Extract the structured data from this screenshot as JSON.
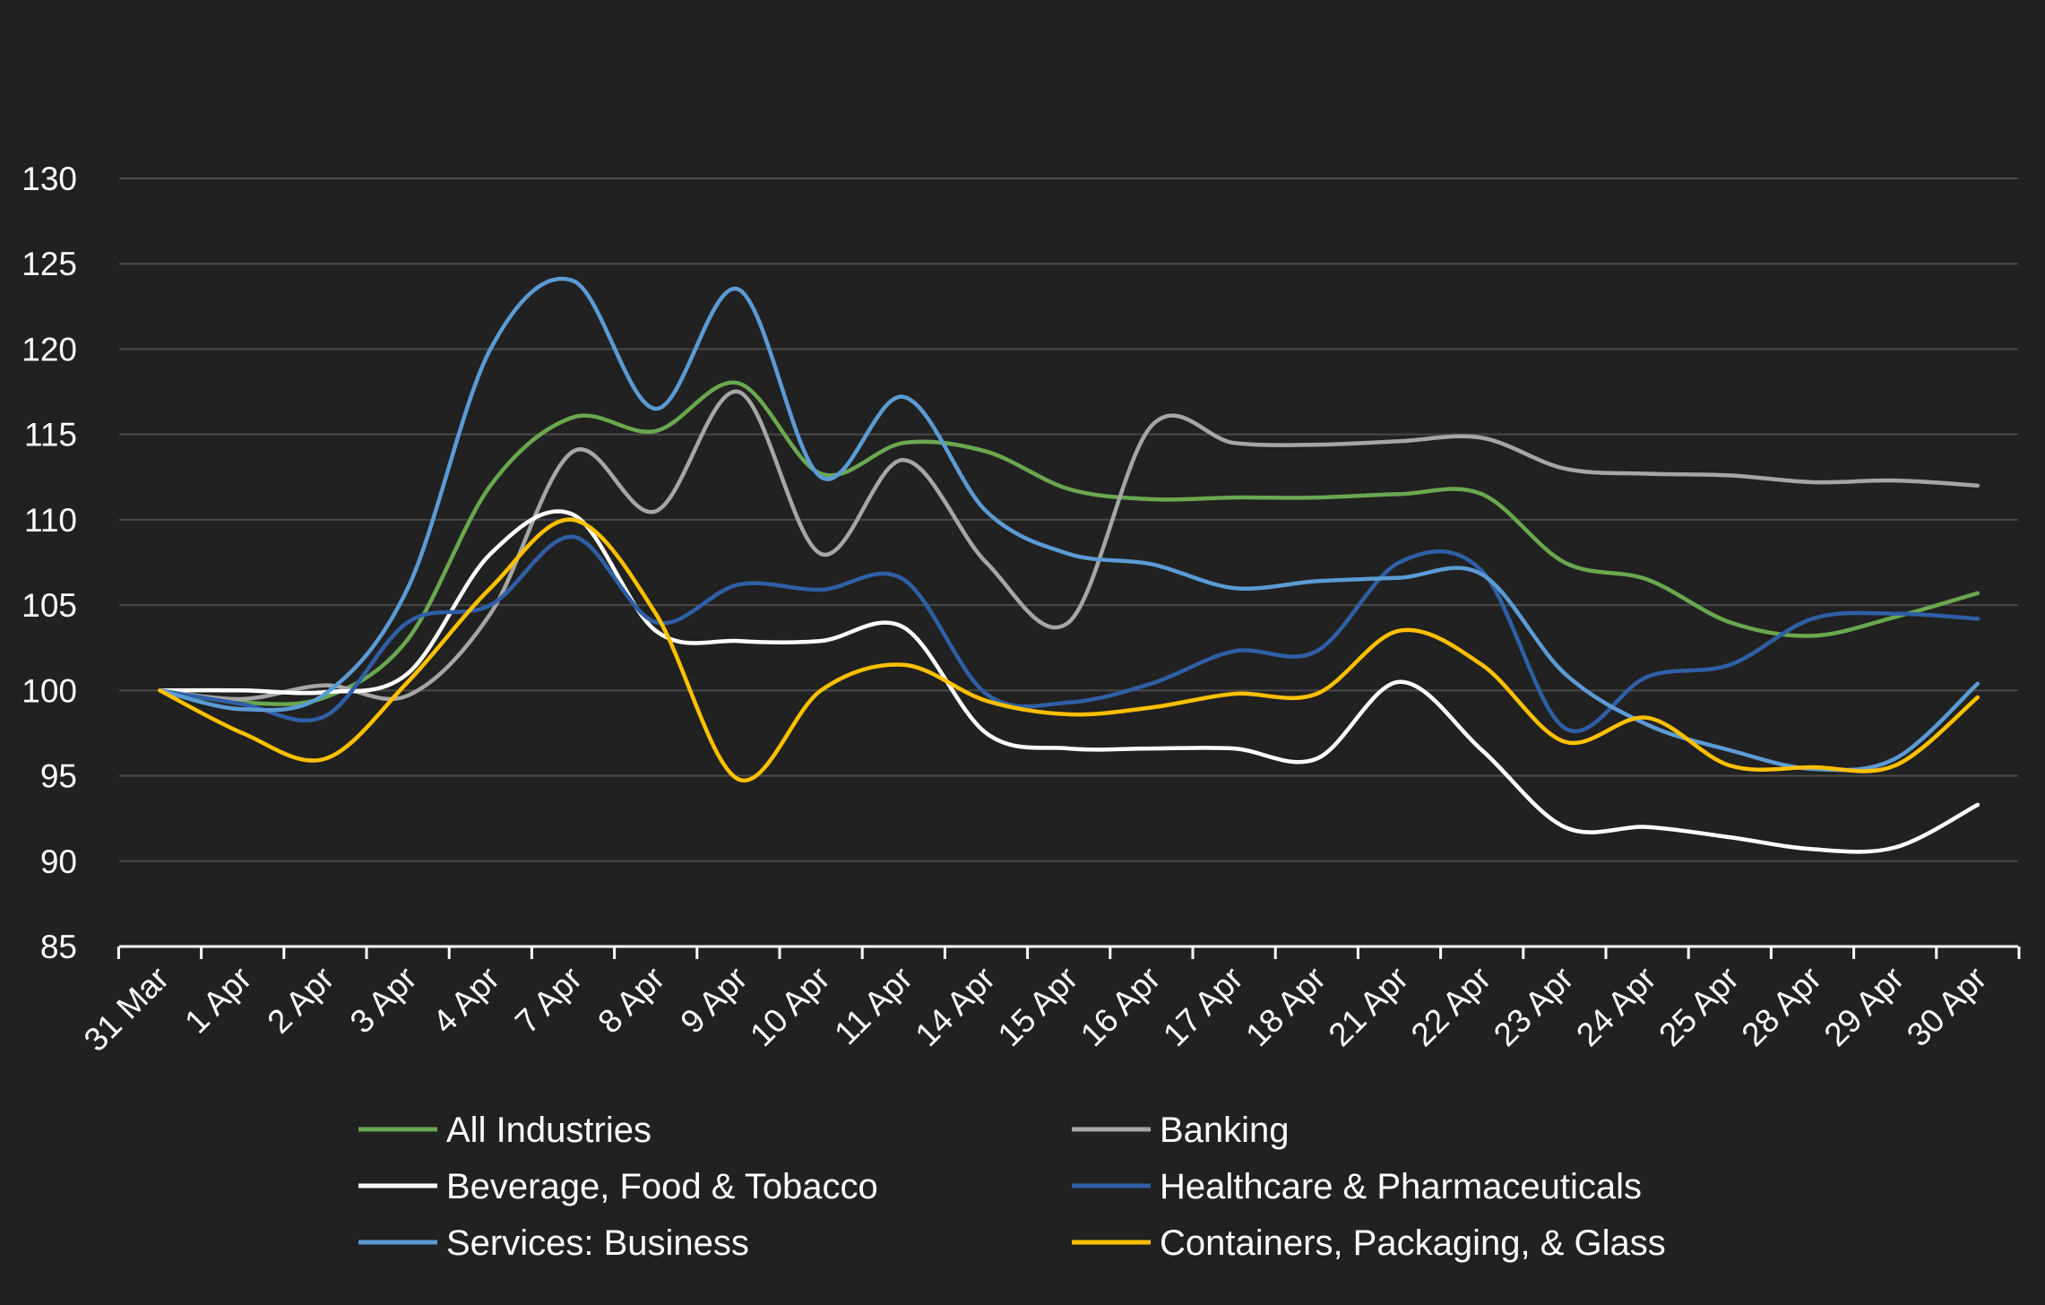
{
  "chart_data": {
    "type": "line",
    "title": "",
    "xlabel": "",
    "ylabel": "",
    "ylim": [
      85,
      130
    ],
    "yticks": [
      "85",
      "90",
      "95",
      "100",
      "105",
      "110",
      "115",
      "120",
      "125",
      "130"
    ],
    "grid": true,
    "legend_position": "bottom",
    "categories": [
      "31 Mar",
      "1 Apr",
      "2 Apr",
      "3 Apr",
      "4 Apr",
      "7 Apr",
      "8 Apr",
      "9 Apr",
      "10 Apr",
      "11 Apr",
      "14 Apr",
      "15 Apr",
      "16 Apr",
      "17 Apr",
      "18 Apr",
      "21 Apr",
      "22 Apr",
      "23 Apr",
      "24 Apr",
      "25 Apr",
      "28 Apr",
      "29 Apr",
      "30 Apr"
    ],
    "series": [
      {
        "name": "All Industries",
        "color": "#6aa84f",
        "values": [
          100,
          99.3,
          99.6,
          103.0,
          112.0,
          116.0,
          115.2,
          118.0,
          112.7,
          114.5,
          114.0,
          111.8,
          111.2,
          111.3,
          111.3,
          111.5,
          111.5,
          107.5,
          106.5,
          104.0,
          103.2,
          104.3,
          105.7
        ]
      },
      {
        "name": "Banking",
        "color": "#a6a6a6",
        "values": [
          100,
          99.5,
          100.3,
          99.7,
          104.5,
          114.0,
          110.5,
          117.5,
          108.0,
          113.5,
          107.5,
          104.0,
          115.5,
          114.5,
          114.4,
          114.6,
          114.8,
          113.0,
          112.7,
          112.6,
          112.2,
          112.3,
          112.0
        ]
      },
      {
        "name": "Beverage, Food & Tobacco",
        "color": "#ffffff",
        "values": [
          100,
          100.0,
          99.9,
          101.0,
          108.0,
          110.3,
          103.5,
          102.9,
          102.9,
          103.7,
          97.5,
          96.6,
          96.6,
          96.6,
          96.0,
          100.5,
          96.5,
          92.0,
          92.0,
          91.4,
          90.7,
          90.8,
          93.3
        ]
      },
      {
        "name": "Healthcare & Pharmaceuticals",
        "color": "#2f5fa6",
        "values": [
          100,
          99.2,
          98.5,
          104.0,
          105.0,
          109.0,
          104.0,
          106.2,
          105.9,
          106.5,
          99.8,
          99.3,
          100.4,
          102.3,
          102.3,
          107.5,
          107.0,
          97.8,
          100.8,
          101.5,
          104.2,
          104.5,
          104.2
        ]
      },
      {
        "name": "Services: Business",
        "color": "#5b9bd5",
        "values": [
          100,
          98.9,
          99.8,
          106.0,
          120.0,
          124.0,
          116.5,
          123.5,
          112.5,
          117.2,
          110.5,
          108.0,
          107.4,
          106.0,
          106.4,
          106.6,
          106.8,
          101.0,
          98.0,
          96.5,
          95.4,
          96.0,
          100.4
        ]
      },
      {
        "name": "Containers, Packaging, & Glass",
        "color": "#ffc000",
        "values": [
          100,
          97.5,
          96.0,
          100.5,
          106.0,
          110.0,
          104.5,
          94.8,
          100.0,
          101.5,
          99.4,
          98.6,
          99.0,
          99.8,
          99.8,
          103.5,
          101.5,
          97.0,
          98.4,
          95.6,
          95.5,
          95.6,
          99.6
        ]
      }
    ]
  }
}
